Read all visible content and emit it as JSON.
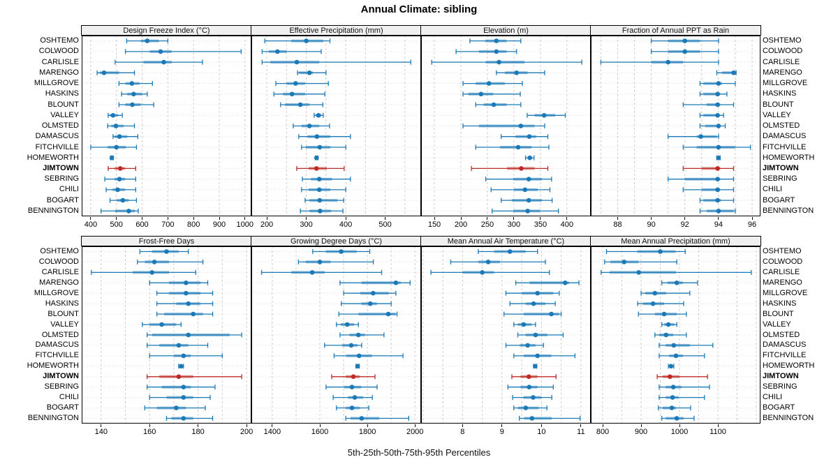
{
  "title": "Annual Climate: sibling",
  "caption": "5th-25th-50th-75th-95th Percentiles",
  "colors": {
    "series_blue": "#1B79B7",
    "highlight_red": "#BE2B26",
    "grid": "#CCCCCC",
    "row_guide": "#D6D6D6",
    "header_bg": "#F0F0F0",
    "panel_border": "#000000"
  },
  "sites": [
    "OSHTEMO",
    "COLWOOD",
    "CARLISLE",
    "MARENGO",
    "MILLGROVE",
    "HASKINS",
    "BLOUNT",
    "VALLEY",
    "OLMSTED",
    "DAMASCUS",
    "FITCHVILLE",
    "HOMEWORTH",
    "JIMTOWN",
    "SEBRING",
    "CHILI",
    "BOGART",
    "BENNINGTON"
  ],
  "highlight_site": "JIMTOWN",
  "percentiles": [
    5,
    25,
    50,
    75,
    95
  ],
  "chart_data": [
    {
      "type": "dot-interval",
      "title": "Design Freeze Index (°C)",
      "row": "top",
      "xlim": [
        365,
        1025
      ],
      "ticks": [
        400,
        500,
        600,
        700,
        800,
        900,
        1000
      ],
      "grid_step": 100,
      "values": [
        [
          540,
          595,
          620,
          665,
          700
        ],
        [
          535,
          630,
          672,
          715,
          985
        ],
        [
          495,
          605,
          684,
          715,
          835
        ],
        [
          425,
          435,
          452,
          510,
          570
        ],
        [
          510,
          535,
          560,
          590,
          640
        ],
        [
          520,
          542,
          567,
          600,
          620
        ],
        [
          510,
          535,
          562,
          595,
          645
        ],
        [
          468,
          474,
          487,
          507,
          523
        ],
        [
          466,
          480,
          498,
          528,
          570
        ],
        [
          487,
          493,
          512,
          542,
          583
        ],
        [
          400,
          466,
          500,
          537,
          578
        ],
        [
          477,
          480,
          482,
          485,
          488
        ],
        [
          468,
          493,
          515,
          534,
          575
        ],
        [
          455,
          493,
          512,
          534,
          575
        ],
        [
          460,
          485,
          505,
          534,
          575
        ],
        [
          475,
          502,
          525,
          548,
          578
        ],
        [
          440,
          495,
          548,
          572,
          585
        ]
      ]
    },
    {
      "type": "dot-interval",
      "title": "Effective Precipitation (mm)",
      "row": "top",
      "xlim": [
        161,
        591
      ],
      "ticks": [
        200,
        300,
        400,
        500
      ],
      "grid_step": 50,
      "values": [
        [
          195,
          262,
          300,
          343,
          360
        ],
        [
          188,
          205,
          227,
          250,
          338
        ],
        [
          188,
          209,
          276,
          333,
          565
        ],
        [
          278,
          282,
          308,
          317,
          350
        ],
        [
          223,
          250,
          273,
          297,
          356
        ],
        [
          218,
          241,
          264,
          297,
          347
        ],
        [
          235,
          246,
          285,
          308,
          342
        ],
        [
          320,
          324,
          331,
          338,
          343
        ],
        [
          267,
          288,
          308,
          333,
          359
        ],
        [
          281,
          303,
          327,
          361,
          412
        ],
        [
          288,
          299,
          334,
          361,
          400
        ],
        [
          323,
          325,
          326,
          328,
          330
        ],
        [
          276,
          306,
          326,
          352,
          396
        ],
        [
          290,
          312,
          333,
          365,
          412
        ],
        [
          288,
          306,
          333,
          361,
          400
        ],
        [
          297,
          308,
          334,
          379,
          395
        ],
        [
          285,
          308,
          335,
          363,
          393
        ]
      ]
    },
    {
      "type": "dot-interval",
      "title": "Elevation (m)",
      "row": "top",
      "xlim": [
        125,
        445
      ],
      "ticks": [
        150,
        200,
        250,
        300,
        350,
        400
      ],
      "grid_step": 50,
      "values": [
        [
          217,
          246,
          267,
          286,
          313
        ],
        [
          191,
          234,
          267,
          286,
          305
        ],
        [
          145,
          247,
          272,
          320,
          428
        ],
        [
          267,
          283,
          305,
          326,
          358
        ],
        [
          204,
          228,
          253,
          283,
          316
        ],
        [
          204,
          214,
          238,
          261,
          312
        ],
        [
          228,
          243,
          262,
          286,
          313
        ],
        [
          325,
          339,
          357,
          378,
          397
        ],
        [
          204,
          234,
          313,
          339,
          358
        ],
        [
          276,
          303,
          329,
          342,
          364
        ],
        [
          228,
          274,
          308,
          333,
          366
        ],
        [
          322,
          326,
          330,
          334,
          338
        ],
        [
          220,
          287,
          314,
          339,
          364
        ],
        [
          247,
          299,
          328,
          353,
          371
        ],
        [
          257,
          300,
          321,
          345,
          368
        ],
        [
          276,
          296,
          328,
          353,
          372
        ],
        [
          259,
          299,
          326,
          349,
          384
        ]
      ]
    },
    {
      "type": "dot-interval",
      "title": "Fraction of Annual PPT as Rain",
      "row": "top",
      "xlim": [
        86.4,
        96.5
      ],
      "ticks": [
        88,
        90,
        92,
        94,
        96
      ],
      "grid_step": 1,
      "values": [
        [
          90.0,
          91.0,
          92.0,
          92.9,
          94.0
        ],
        [
          90.0,
          91.0,
          92.0,
          92.9,
          94.0
        ],
        [
          87.0,
          90.0,
          91.0,
          91.9,
          94.0
        ],
        [
          93.9,
          94.2,
          94.9,
          94.95,
          95.05
        ],
        [
          92.9,
          93.1,
          94.0,
          94.2,
          95.0
        ],
        [
          92.9,
          93.1,
          93.95,
          94.1,
          94.5
        ],
        [
          91.9,
          93.3,
          93.95,
          94.1,
          94.9
        ],
        [
          92.9,
          93.1,
          93.95,
          94.05,
          94.3
        ],
        [
          92.9,
          93.2,
          94.0,
          94.1,
          94.4
        ],
        [
          91.0,
          92.7,
          92.95,
          93.9,
          94.0
        ],
        [
          91.9,
          92.7,
          94.0,
          95.0,
          95.9
        ],
        [
          93.9,
          93.95,
          94.0,
          94.05,
          94.1
        ],
        [
          91.9,
          93.0,
          93.95,
          94.1,
          94.9
        ],
        [
          91.0,
          92.0,
          93.95,
          94.1,
          94.9
        ],
        [
          91.9,
          93.0,
          93.95,
          94.1,
          94.9
        ],
        [
          92.9,
          93.1,
          93.95,
          94.15,
          94.9
        ],
        [
          92.9,
          93.3,
          94.0,
          94.9,
          95.0
        ]
      ]
    },
    {
      "type": "dot-interval",
      "title": "Frost-Free Days",
      "row": "bottom",
      "xlim": [
        132,
        202
      ],
      "ticks": [
        140,
        160,
        180,
        200
      ],
      "grid_step": 10,
      "values": [
        [
          156,
          161,
          167,
          172,
          176
        ],
        [
          155,
          158,
          162,
          168,
          182
        ],
        [
          136,
          153,
          161,
          168,
          179
        ],
        [
          160,
          168,
          175,
          181,
          184
        ],
        [
          163,
          168,
          175,
          181,
          186
        ],
        [
          163,
          171,
          176,
          181,
          186
        ],
        [
          163,
          166,
          178,
          182,
          186
        ],
        [
          157,
          160,
          165,
          171,
          173
        ],
        [
          159,
          161,
          176,
          193,
          198
        ],
        [
          159,
          164,
          172,
          176,
          184
        ],
        [
          160,
          170,
          174,
          177,
          190
        ],
        [
          172,
          172.5,
          173,
          173.5,
          174
        ],
        [
          159,
          164,
          172,
          178,
          198
        ],
        [
          159,
          165,
          174,
          177,
          187
        ],
        [
          160,
          167,
          174,
          178,
          185
        ],
        [
          158,
          163,
          171,
          175,
          183
        ],
        [
          167,
          169,
          174,
          178,
          186
        ]
      ]
    },
    {
      "type": "dot-interval",
      "title": "Growing Degree Days (°C)",
      "row": "bottom",
      "xlim": [
        1312,
        2026
      ],
      "ticks": [
        1400,
        1600,
        1800,
        2000
      ],
      "grid_step": 100,
      "values": [
        [
          1570,
          1625,
          1690,
          1755,
          1810
        ],
        [
          1510,
          1540,
          1600,
          1645,
          1825
        ],
        [
          1355,
          1480,
          1568,
          1620,
          1860
        ],
        [
          1685,
          1775,
          1920,
          1940,
          1980
        ],
        [
          1700,
          1770,
          1824,
          1890,
          1920
        ],
        [
          1690,
          1775,
          1812,
          1840,
          1900
        ],
        [
          1680,
          1762,
          1888,
          1920,
          1925
        ],
        [
          1670,
          1688,
          1715,
          1744,
          1762
        ],
        [
          1685,
          1724,
          1762,
          1790,
          1870
        ],
        [
          1620,
          1694,
          1732,
          1759,
          1776
        ],
        [
          1660,
          1710,
          1765,
          1820,
          1950
        ],
        [
          1752,
          1756,
          1759,
          1762,
          1766
        ],
        [
          1650,
          1709,
          1741,
          1768,
          1832
        ],
        [
          1626,
          1703,
          1735,
          1774,
          1841
        ],
        [
          1656,
          1718,
          1747,
          1782,
          1821
        ],
        [
          1670,
          1709,
          1735,
          1768,
          1806
        ],
        [
          1709,
          1729,
          1776,
          1850,
          1974
        ]
      ]
    },
    {
      "type": "dot-interval",
      "title": "Mean Annual Air Temperature (°C)",
      "row": "bottom",
      "xlim": [
        6.95,
        11.25
      ],
      "ticks": [
        8,
        9,
        10,
        11
      ],
      "grid_step": 0.5,
      "values": [
        [
          8.4,
          8.8,
          9.2,
          9.6,
          9.9
        ],
        [
          7.7,
          8.4,
          8.65,
          8.95,
          10.1
        ],
        [
          7.2,
          8.0,
          8.5,
          8.8,
          10.2
        ],
        [
          9.35,
          9.7,
          10.6,
          10.7,
          10.95
        ],
        [
          9.1,
          9.5,
          9.9,
          10.3,
          10.45
        ],
        [
          9.2,
          9.6,
          9.8,
          10.1,
          10.35
        ],
        [
          9.05,
          9.55,
          10.25,
          10.45,
          10.5
        ],
        [
          9.3,
          9.4,
          9.55,
          9.75,
          9.85
        ],
        [
          9.4,
          9.6,
          9.85,
          10.15,
          10.55
        ],
        [
          9.1,
          9.45,
          9.65,
          9.85,
          10.05
        ],
        [
          9.3,
          9.55,
          9.9,
          10.25,
          10.85
        ],
        [
          9.8,
          9.82,
          9.84,
          9.86,
          9.88
        ],
        [
          9.25,
          9.47,
          9.68,
          9.9,
          10.37
        ],
        [
          9.15,
          9.47,
          9.69,
          9.9,
          10.3
        ],
        [
          9.27,
          9.54,
          9.79,
          10.0,
          10.26
        ],
        [
          9.3,
          9.4,
          9.6,
          9.93,
          10.14
        ],
        [
          9.44,
          9.56,
          9.76,
          10.26,
          10.98
        ]
      ]
    },
    {
      "type": "dot-interval",
      "title": "Mean Annual Precipitation (mm)",
      "row": "bottom",
      "xlim": [
        769,
        1211
      ],
      "ticks": [
        800,
        900,
        1000,
        1100
      ],
      "grid_step": 50,
      "values": [
        [
          810,
          890,
          950,
          990,
          1015
        ],
        [
          805,
          820,
          856,
          893,
          993
        ],
        [
          796,
          818,
          894,
          991,
          1187
        ],
        [
          954,
          969,
          993,
          1009,
          1047
        ],
        [
          900,
          911,
          936,
          965,
          1027
        ],
        [
          891,
          905,
          931,
          960,
          1011
        ],
        [
          893,
          936,
          960,
          993,
          1018
        ],
        [
          954,
          960,
          971,
          987,
          993
        ],
        [
          936,
          947,
          965,
          984,
          1018
        ],
        [
          947,
          964,
          985,
          1027,
          1087
        ],
        [
          947,
          973,
          991,
          1009,
          1065
        ],
        [
          971,
          975,
          978,
          982,
          985
        ],
        [
          942,
          956,
          975,
          1000,
          1073
        ],
        [
          947,
          964,
          984,
          1005,
          1078
        ],
        [
          947,
          964,
          982,
          998,
          1065
        ],
        [
          945,
          956,
          980,
          991,
          1029
        ],
        [
          954,
          964,
          993,
          1011,
          1038
        ]
      ]
    }
  ]
}
